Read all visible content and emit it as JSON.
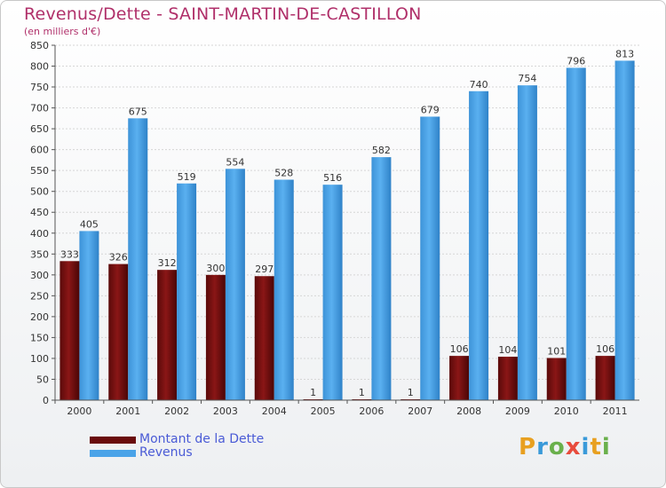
{
  "title": "Revenus/Dette - SAINT-MARTIN-DE-CASTILLON",
  "subtitle": "(en milliers d'€)",
  "logo": {
    "letters": [
      "P",
      "r",
      "o",
      "x",
      "i",
      "t",
      "i"
    ],
    "colors": [
      "#e8a020",
      "#3a9ad9",
      "#6ab04c",
      "#e84c3d",
      "#3a9ad9",
      "#e8a020",
      "#6ab04c"
    ]
  },
  "chart_data": {
    "type": "bar",
    "categories": [
      "2000",
      "2001",
      "2002",
      "2003",
      "2004",
      "2005",
      "2006",
      "2007",
      "2008",
      "2009",
      "2010",
      "2011"
    ],
    "series": [
      {
        "name": "Montant de la Dette",
        "color": "#7a1010",
        "values": [
          333,
          326,
          312,
          300,
          297,
          1,
          1,
          1,
          106,
          104,
          101,
          106
        ]
      },
      {
        "name": "Revenus",
        "color": "#4aa3e8",
        "values": [
          405,
          675,
          519,
          554,
          528,
          516,
          582,
          679,
          740,
          754,
          796,
          813
        ]
      }
    ],
    "yticks": [
      0,
      50,
      100,
      150,
      200,
      250,
      300,
      350,
      400,
      450,
      500,
      550,
      600,
      650,
      700,
      750,
      800,
      850
    ],
    "ylim": [
      0,
      850
    ],
    "grid": true,
    "legend": "bottom-left"
  }
}
